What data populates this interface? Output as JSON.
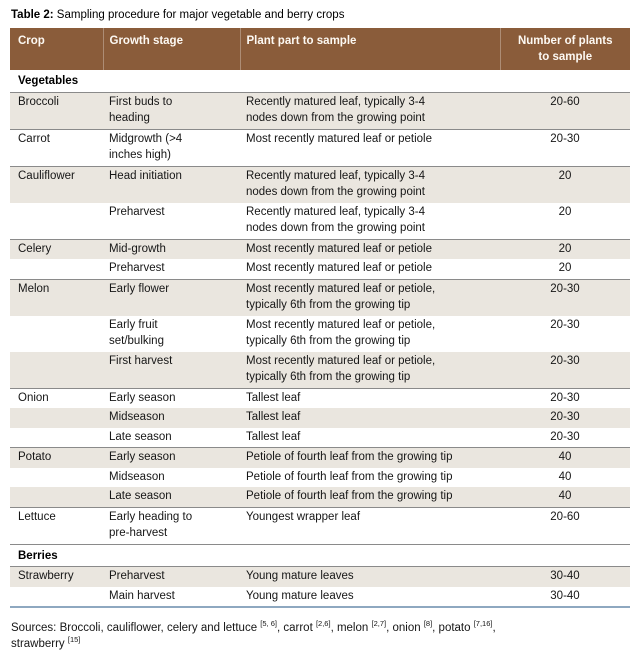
{
  "title": {
    "prefix": "Table 2:",
    "rest": " Sampling procedure for major vegetable and berry crops"
  },
  "colors": {
    "header_bg": "#8a5c3a",
    "header_text": "#fdf9f3",
    "row_shaded": "#eae6df",
    "group_line": "#8a8a8a",
    "bottom_line": "#8ea8c0"
  },
  "table": {
    "headers": [
      "Crop",
      "Growth stage",
      "Plant part to sample",
      "Number of plants\nto sample"
    ],
    "rows": [
      {
        "type": "section",
        "label": "Vegetables"
      },
      {
        "crop": "Broccoli",
        "stage": "First buds to\nheading",
        "part": "Recently matured leaf, typically 3-4\nnodes down from the growing point",
        "count": "20-60"
      },
      {
        "crop": "Carrot",
        "stage": "Midgrowth (>4\ninches high)",
        "part": "Most recently matured leaf or petiole",
        "count": "20-30"
      },
      {
        "crop": "Cauliflower",
        "stage": "Head initiation",
        "part": "Recently matured leaf, typically 3-4\nnodes down from the growing point",
        "count": "20"
      },
      {
        "crop": "",
        "stage": "Preharvest",
        "part": "Recently matured leaf, typically 3-4\nnodes down from the growing point",
        "count": "20"
      },
      {
        "crop": "Celery",
        "stage": "Mid-growth",
        "part": "Most recently matured leaf or petiole",
        "count": "20"
      },
      {
        "crop": "",
        "stage": "Preharvest",
        "part": "Most recently matured leaf or petiole",
        "count": "20"
      },
      {
        "crop": "Melon",
        "stage": "Early flower",
        "part": "Most recently matured leaf or petiole,\ntypically 6th from the growing tip",
        "count": "20-30"
      },
      {
        "crop": "",
        "stage": "Early fruit\nset/bulking",
        "part": "Most recently matured leaf or petiole,\ntypically 6th from the growing tip",
        "count": "20-30"
      },
      {
        "crop": "",
        "stage": "First harvest",
        "part": "Most recently matured leaf or petiole,\ntypically 6th from the growing tip",
        "count": "20-30"
      },
      {
        "crop": "Onion",
        "stage": "Early season",
        "part": "Tallest leaf",
        "count": "20-30"
      },
      {
        "crop": "",
        "stage": "Midseason",
        "part": "Tallest leaf",
        "count": "20-30"
      },
      {
        "crop": "",
        "stage": "Late season",
        "part": "Tallest leaf",
        "count": "20-30"
      },
      {
        "crop": "Potato",
        "stage": "Early season",
        "part": "Petiole of fourth leaf from the growing tip",
        "count": "40"
      },
      {
        "crop": "",
        "stage": "Midseason",
        "part": "Petiole of fourth leaf from the growing tip",
        "count": "40"
      },
      {
        "crop": "",
        "stage": "Late season",
        "part": "Petiole of fourth leaf from the growing tip",
        "count": "40"
      },
      {
        "crop": "Lettuce",
        "stage": "Early heading to\npre-harvest",
        "part": "Youngest wrapper leaf",
        "count": "20-60"
      },
      {
        "type": "section",
        "label": "Berries"
      },
      {
        "crop": "Strawberry",
        "stage": "Preharvest",
        "part": "Young mature leaves",
        "count": "30-40"
      },
      {
        "crop": "",
        "stage": "Main harvest",
        "part": "Young mature leaves",
        "count": "30-40"
      }
    ]
  },
  "sources": {
    "segments": [
      "Sources: Broccoli, cauliflower, celery and lettuce ",
      "[5, 6]",
      ", carrot ",
      "[2,6]",
      ", melon ",
      "[2,7]",
      ", onion ",
      "[8]",
      ", potato ",
      "[7,16]",
      ",\nstrawberry ",
      "[15]"
    ]
  }
}
